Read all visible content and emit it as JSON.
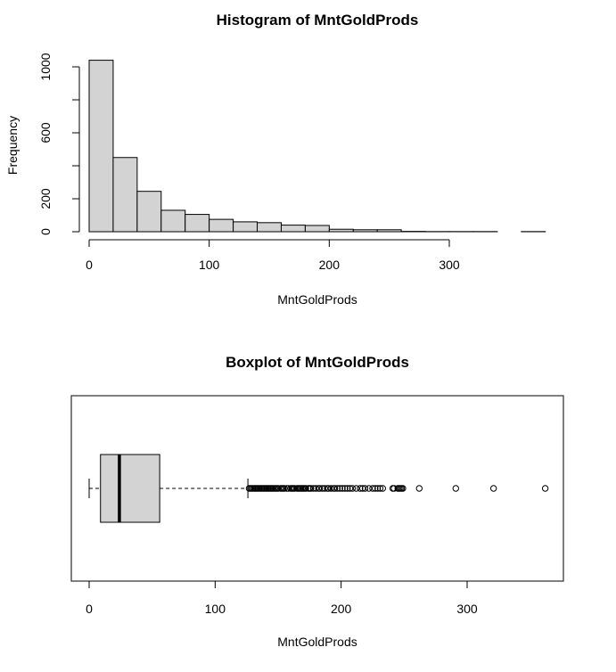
{
  "chart_data": [
    {
      "type": "histogram",
      "title": "Histogram of MntGoldProds",
      "xlabel": "MntGoldProds",
      "ylabel": "Frequency",
      "bin_width": 20,
      "bins": [
        {
          "start": 0,
          "end": 20,
          "count": 1040
        },
        {
          "start": 20,
          "end": 40,
          "count": 450
        },
        {
          "start": 40,
          "end": 60,
          "count": 245
        },
        {
          "start": 60,
          "end": 80,
          "count": 130
        },
        {
          "start": 80,
          "end": 100,
          "count": 105
        },
        {
          "start": 100,
          "end": 120,
          "count": 75
        },
        {
          "start": 120,
          "end": 140,
          "count": 60
        },
        {
          "start": 140,
          "end": 160,
          "count": 55
        },
        {
          "start": 160,
          "end": 180,
          "count": 40
        },
        {
          "start": 180,
          "end": 200,
          "count": 38
        },
        {
          "start": 200,
          "end": 220,
          "count": 15
        },
        {
          "start": 220,
          "end": 240,
          "count": 12
        },
        {
          "start": 240,
          "end": 260,
          "count": 12
        },
        {
          "start": 260,
          "end": 280,
          "count": 2
        },
        {
          "start": 280,
          "end": 300,
          "count": 1
        },
        {
          "start": 300,
          "end": 320,
          "count": 1
        },
        {
          "start": 320,
          "end": 340,
          "count": 1
        },
        {
          "start": 340,
          "end": 360,
          "count": 0
        },
        {
          "start": 360,
          "end": 380,
          "count": 1
        }
      ],
      "x_ticks": [
        0,
        100,
        200,
        300
      ],
      "y_ticks": [
        0,
        200,
        600,
        1000
      ],
      "xlim": [
        0,
        380
      ],
      "ylim": [
        0,
        1040
      ]
    },
    {
      "type": "boxplot",
      "title": "Boxplot of MntGoldProds",
      "xlabel": "MntGoldProds",
      "orientation": "horizontal",
      "whisker_low": 0,
      "q1": 9,
      "median": 24,
      "q3": 56,
      "whisker_high": 126,
      "outliers": [
        127,
        128,
        129,
        130,
        131,
        132,
        133,
        134,
        135,
        136,
        137,
        138,
        139,
        140,
        141,
        142,
        143,
        144,
        145,
        146,
        147,
        148,
        149,
        150,
        152,
        153,
        154,
        155,
        157,
        158,
        160,
        161,
        162,
        163,
        165,
        166,
        167,
        168,
        169,
        170,
        171,
        172,
        174,
        175,
        176,
        178,
        180,
        182,
        183,
        185,
        187,
        189,
        190,
        192,
        194,
        195,
        197,
        199,
        201,
        203,
        205,
        207,
        209,
        212,
        215,
        217,
        219,
        222,
        225,
        227,
        229,
        231,
        233,
        241,
        242,
        245,
        246,
        247,
        248,
        249,
        262,
        291,
        321,
        362
      ],
      "x_ticks": [
        0,
        100,
        200,
        300
      ],
      "xlim": [
        -14,
        376
      ]
    }
  ]
}
